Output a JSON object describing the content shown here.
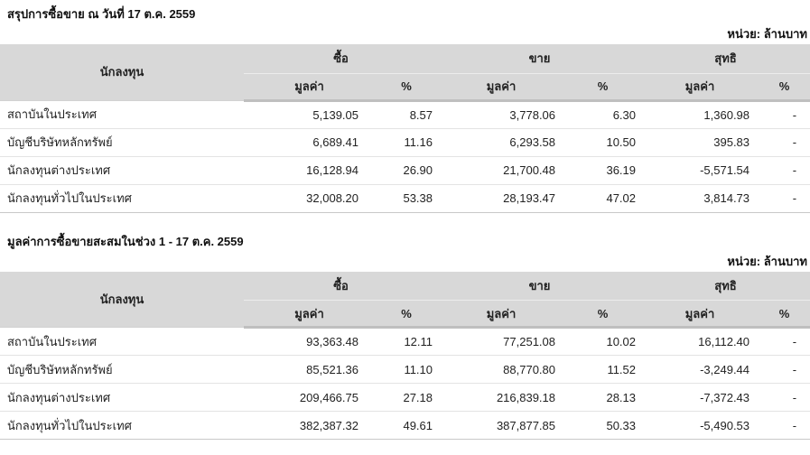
{
  "colors": {
    "header_bg": "#d8d8d8",
    "row_separator": "#e3e3e3",
    "text": "#222222"
  },
  "daily_summary": {
    "title": "สรุปการซื้อขาย ณ วันที่ 17 ต.ค. 2559",
    "unit_label": "หน่วย: ล้านบาท",
    "columns": {
      "investor": "นักลงทุน",
      "buy": "ซื้อ",
      "sell": "ขาย",
      "net": "สุทธิ",
      "value": "มูลค่า",
      "percent": "%"
    },
    "rows": [
      {
        "investor": "สถาบันในประเทศ",
        "buy_value": "5,139.05",
        "buy_pct": "8.57",
        "sell_value": "3,778.06",
        "sell_pct": "6.30",
        "net_value": "1,360.98",
        "net_pct": "-"
      },
      {
        "investor": "บัญชีบริษัทหลักทรัพย์",
        "buy_value": "6,689.41",
        "buy_pct": "11.16",
        "sell_value": "6,293.58",
        "sell_pct": "10.50",
        "net_value": "395.83",
        "net_pct": "-"
      },
      {
        "investor": "นักลงทุนต่างประเทศ",
        "buy_value": "16,128.94",
        "buy_pct": "26.90",
        "sell_value": "21,700.48",
        "sell_pct": "36.19",
        "net_value": "-5,571.54",
        "net_pct": "-"
      },
      {
        "investor": "นักลงทุนทั่วไปในประเทศ",
        "buy_value": "32,008.20",
        "buy_pct": "53.38",
        "sell_value": "28,193.47",
        "sell_pct": "47.02",
        "net_value": "3,814.73",
        "net_pct": "-"
      }
    ]
  },
  "accumulated_summary": {
    "title": "มูลค่าการซื้อขายสะสมในช่วง 1 - 17 ต.ค. 2559",
    "unit_label": "หน่วย: ล้านบาท",
    "columns": {
      "investor": "นักลงทุน",
      "buy": "ซื้อ",
      "sell": "ขาย",
      "net": "สุทธิ",
      "value": "มูลค่า",
      "percent": "%"
    },
    "rows": [
      {
        "investor": "สถาบันในประเทศ",
        "buy_value": "93,363.48",
        "buy_pct": "12.11",
        "sell_value": "77,251.08",
        "sell_pct": "10.02",
        "net_value": "16,112.40",
        "net_pct": "-"
      },
      {
        "investor": "บัญชีบริษัทหลักทรัพย์",
        "buy_value": "85,521.36",
        "buy_pct": "11.10",
        "sell_value": "88,770.80",
        "sell_pct": "11.52",
        "net_value": "-3,249.44",
        "net_pct": "-"
      },
      {
        "investor": "นักลงทุนต่างประเทศ",
        "buy_value": "209,466.75",
        "buy_pct": "27.18",
        "sell_value": "216,839.18",
        "sell_pct": "28.13",
        "net_value": "-7,372.43",
        "net_pct": "-"
      },
      {
        "investor": "นักลงทุนทั่วไปในประเทศ",
        "buy_value": "382,387.32",
        "buy_pct": "49.61",
        "sell_value": "387,877.85",
        "sell_pct": "50.33",
        "net_value": "-5,490.53",
        "net_pct": "-"
      }
    ]
  }
}
